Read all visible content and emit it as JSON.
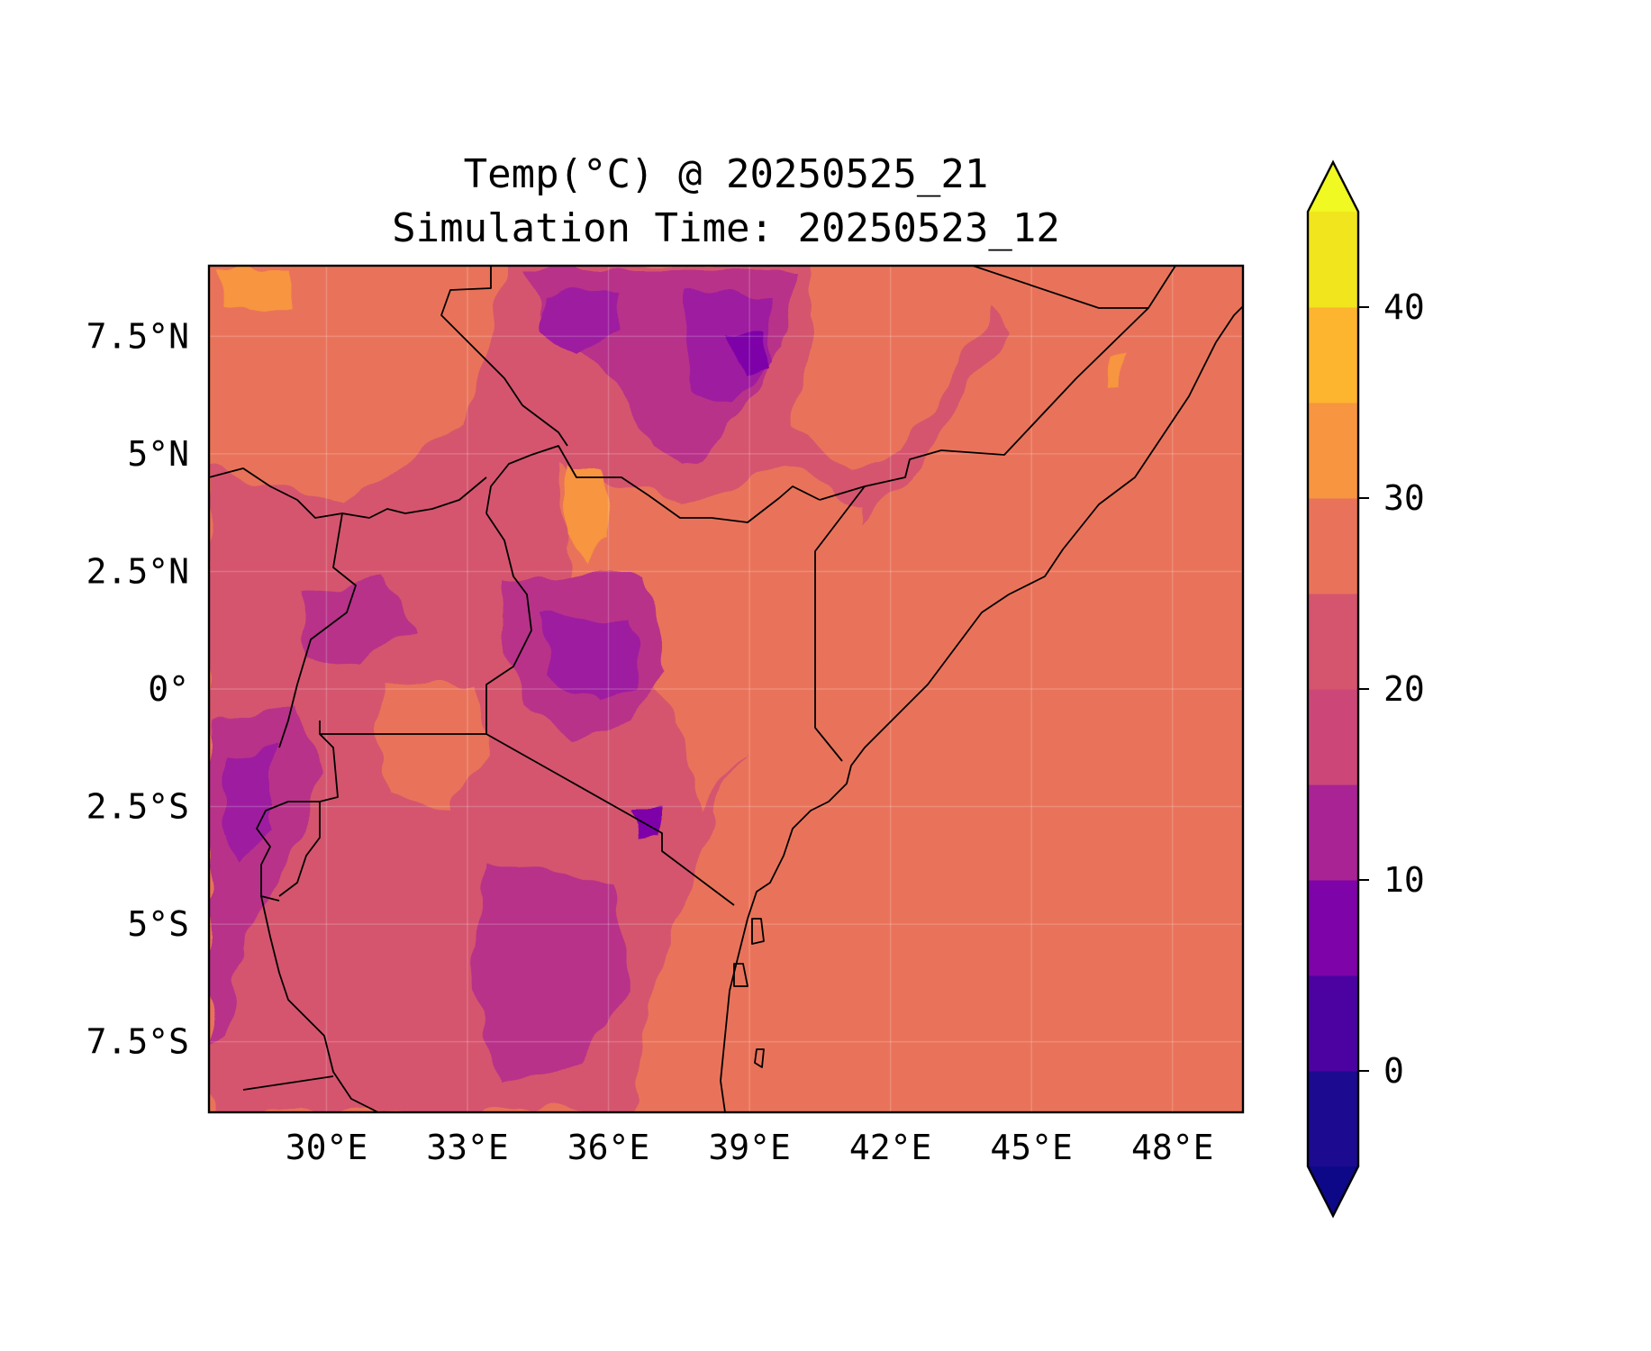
{
  "title": {
    "line1": "Temp(°C) @ 20250525_21",
    "line2": "Simulation Time: 20250523_12"
  },
  "map": {
    "lon_range": [
      27.5,
      49.5
    ],
    "lat_range": [
      -9.0,
      9.0
    ],
    "x_ticks": [
      {
        "value": 30,
        "label": "30°E"
      },
      {
        "value": 33,
        "label": "33°E"
      },
      {
        "value": 36,
        "label": "36°E"
      },
      {
        "value": 39,
        "label": "39°E"
      },
      {
        "value": 42,
        "label": "42°E"
      },
      {
        "value": 45,
        "label": "45°E"
      },
      {
        "value": 48,
        "label": "48°E"
      }
    ],
    "y_ticks": [
      {
        "value": 7.5,
        "label": "7.5°N"
      },
      {
        "value": 5,
        "label": "5°N"
      },
      {
        "value": 2.5,
        "label": "2.5°N"
      },
      {
        "value": 0,
        "label": "0°"
      },
      {
        "value": -2.5,
        "label": "2.5°S"
      },
      {
        "value": -5,
        "label": "5°S"
      },
      {
        "value": -7.5,
        "label": "7.5°S"
      }
    ],
    "grid": true,
    "colors": {
      "ocean": "#e9735a",
      "band_15_20": "#b83289",
      "band_20_25": "#d5546e",
      "band_25_30": "#e9735a",
      "band_30_35": "#f79540",
      "band_10_15": "#9e1aa0",
      "band_5_10": "#7d03a8"
    }
  },
  "colorbar": {
    "levels": [
      -5,
      0,
      5,
      10,
      15,
      20,
      25,
      30,
      35,
      40,
      45
    ],
    "colors": [
      "#1c0b90",
      "#4c02a1",
      "#7e03a8",
      "#a92395",
      "#cc4778",
      "#d5546e",
      "#e9735a",
      "#f89540",
      "#fdb42f",
      "#f1e51d"
    ],
    "under_color": "#0d0887",
    "over_color": "#f0f921",
    "ticks": [
      {
        "value": 0,
        "label": "0"
      },
      {
        "value": 10,
        "label": "10"
      },
      {
        "value": 20,
        "label": "20"
      },
      {
        "value": 30,
        "label": "30"
      },
      {
        "value": 40,
        "label": "40"
      }
    ],
    "extend": "both"
  }
}
